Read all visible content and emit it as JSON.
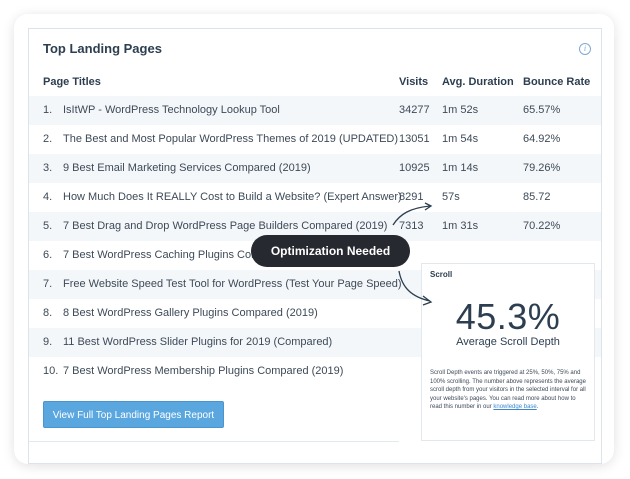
{
  "panel": {
    "title": "Top Landing Pages",
    "info_icon": "info-icon"
  },
  "table": {
    "headers": {
      "page": "Page Titles",
      "visits": "Visits",
      "duration": "Avg. Duration",
      "bounce": "Bounce Rate"
    },
    "rows": [
      {
        "num": "1.",
        "page": "IsItWP - WordPress Technology Lookup Tool",
        "visits": "34277",
        "duration": "1m 52s",
        "bounce": "65.57%"
      },
      {
        "num": "2.",
        "page": "The Best and Most Popular WordPress Themes of 2019 (UPDATED)",
        "visits": "13051",
        "duration": "1m 54s",
        "bounce": "64.92%"
      },
      {
        "num": "3.",
        "page": "9 Best Email Marketing Services Compared (2019)",
        "visits": "10925",
        "duration": "1m 14s",
        "bounce": "79.26%"
      },
      {
        "num": "4.",
        "page": "How Much Does It REALLY Cost to Build a Website? (Expert Answer)",
        "visits": "8291",
        "duration": "57s",
        "bounce": "85.72"
      },
      {
        "num": "5.",
        "page": "7 Best Drag and Drop WordPress Page Builders Compared (2019)",
        "visits": "7313",
        "duration": "1m 31s",
        "bounce": "70.22%"
      },
      {
        "num": "6.",
        "page": "7 Best WordPress Caching Plugins Comp",
        "visits": "",
        "duration": "",
        "bounce": ""
      },
      {
        "num": "7.",
        "page": "Free Website Speed Test Tool for WordPress (Test Your Page Speed)",
        "visits": "",
        "duration": "",
        "bounce": ""
      },
      {
        "num": "8.",
        "page": "8 Best WordPress Gallery Plugins Compared (2019)",
        "visits": "",
        "duration": "",
        "bounce": ""
      },
      {
        "num": "9.",
        "page": "11 Best WordPress Slider Plugins for 2019 (Compared)",
        "visits": "",
        "duration": "",
        "bounce": ""
      },
      {
        "num": "10.",
        "page": "7 Best WordPress Membership Plugins Compared (2019)",
        "visits": "",
        "duration": "",
        "bounce": ""
      }
    ]
  },
  "report_button": "View Full Top Landing Pages Report",
  "callout": "Optimization Needed",
  "scroll": {
    "title": "Scroll",
    "percent": "45.3%",
    "label": "Average Scroll Depth",
    "description": "Scroll Depth events are triggered at 25%, 50%, 75% and 100% scrolling. The number above represents the average scroll depth from your visitors in the selected interval for all your website's pages. You can read more about how to read this number in our",
    "link": "knowledge base",
    "period": "."
  },
  "colors": {
    "button": "#5aa7e0",
    "callout_bg": "#262a30",
    "row_alt": "#f4f7fa",
    "link": "#3b87cc"
  }
}
